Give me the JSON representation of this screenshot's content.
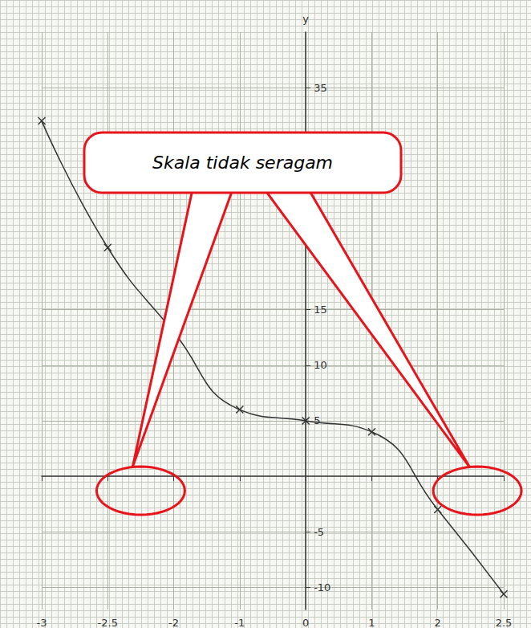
{
  "chart_data": {
    "type": "line",
    "categories": [
      "-3",
      "-2.5",
      "-2",
      "-1",
      "0",
      "1",
      "2",
      "2.5"
    ],
    "values": [
      32,
      20.6,
      13,
      6,
      5,
      4,
      -3,
      -10.6
    ],
    "y_label": "y",
    "ylim": [
      -12,
      40
    ],
    "yticks": [
      -10,
      -5,
      5,
      10,
      15,
      35
    ],
    "annotation": "Skala tidak seragam",
    "marker": "x",
    "line_style": "solid",
    "color": "#333333",
    "grid": true
  }
}
